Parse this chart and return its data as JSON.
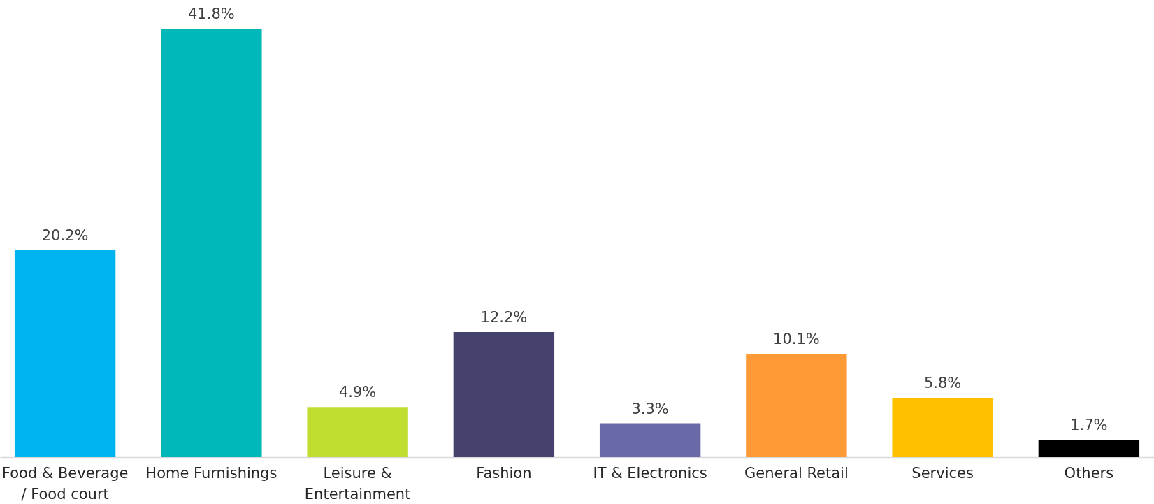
{
  "chart_data": {
    "type": "bar",
    "categories": [
      "Food & Beverage / Food court",
      "Home Furnishings",
      "Leisure & Entertainment",
      "Fashion",
      "IT & Electronics",
      "General Retail",
      "Services",
      "Others"
    ],
    "values": [
      20.2,
      41.8,
      4.9,
      12.2,
      3.3,
      10.1,
      5.8,
      1.7
    ],
    "value_labels": [
      "20.2%",
      "41.8%",
      "4.9%",
      "12.2%",
      "3.3%",
      "10.1%",
      "5.8%",
      "1.7%"
    ],
    "colors": [
      "#00b4f0",
      "#00b8b8",
      "#c0de30",
      "#45436e",
      "#6a69a8",
      "#ff9a36",
      "#ffc000",
      "#000000"
    ],
    "data_labels": false
  }
}
